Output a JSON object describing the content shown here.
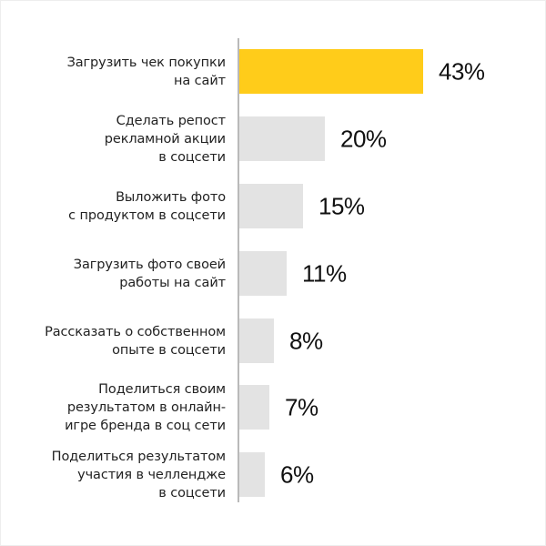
{
  "chart_data": {
    "type": "bar",
    "orientation": "horizontal",
    "title": "",
    "xlabel": "",
    "ylabel": "",
    "xlim": [
      0,
      43
    ],
    "grid": false,
    "legend": null,
    "categories": [
      "Загрузить чек покупки\nна сайт",
      "Сделать репост\nрекламной акции\nв соцсети",
      "Выложить фото\nс продуктом в соцсети",
      "Загрузить фото своей\nработы на сайт",
      "Рассказать о собственном\nопыте в соцсети",
      "Поделиться своим\nрезультатом в онлайн-\nигре бренда в соц сети",
      "Поделиться результатом\nучастия в челлендже\nв соцсети"
    ],
    "values": [
      43,
      20,
      15,
      11,
      8,
      7,
      6
    ],
    "value_labels": [
      "43%",
      "20%",
      "15%",
      "11%",
      "8%",
      "7%",
      "6%"
    ],
    "colors": {
      "highlight": "#FFCC1A",
      "default": "#E3E3E3",
      "axis": "#B9B9B9"
    }
  }
}
